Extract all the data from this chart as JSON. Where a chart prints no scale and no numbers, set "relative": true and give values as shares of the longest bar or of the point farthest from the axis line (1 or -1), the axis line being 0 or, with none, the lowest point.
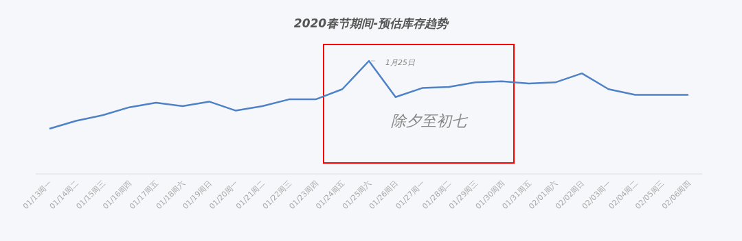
{
  "chart_data": {
    "type": "line",
    "title": "2020春节期间-预估库存趋势",
    "relative": true,
    "marker": "none",
    "line_style": "solid",
    "categories": [
      "01/13周一",
      "01/14周二",
      "01/15周三",
      "01/16周四",
      "01/17周五",
      "01/18周六",
      "01/19周日",
      "01/20周一",
      "01/21周二",
      "01/22周三",
      "01/23周四",
      "01/24周五",
      "01/25周六",
      "01/26周日",
      "01/27周一",
      "01/28周二",
      "01/29周三",
      "01/30周四",
      "01/31周五",
      "02/01周六",
      "02/02周日",
      "02/03周一",
      "02/04周二",
      "02/05周三",
      "02/06周四"
    ],
    "series": [
      {
        "color": "#4f81c7",
        "values": [
          0.4,
          0.47,
          0.52,
          0.59,
          0.63,
          0.6,
          0.64,
          0.56,
          0.6,
          0.66,
          0.66,
          0.75,
          1,
          0.68,
          0.76,
          0.77,
          0.81,
          0.82,
          0.8,
          0.81,
          0.89,
          0.75,
          0.7,
          0.7,
          0.7
        ]
      }
    ],
    "annotations": [
      {
        "text": "1月25日",
        "x": "01/25周六",
        "y": 1
      },
      "除夕至初七"
    ]
  }
}
